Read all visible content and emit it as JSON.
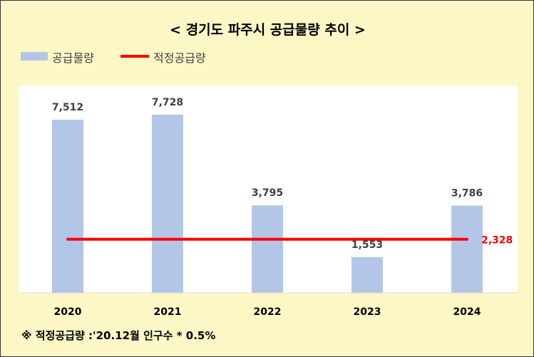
{
  "title": "< 경기도 파주시 공급물량 추이 >",
  "legend": {
    "bar_label": "공급물량",
    "line_label": "적정공급량"
  },
  "footnote": "※ 적정공급량 :'20.12월 인구수 * 0.5%",
  "colors": {
    "bar": "#b4c6e7",
    "line": "#ff0000",
    "background": "#fdf7c6"
  },
  "chart_data": {
    "type": "bar",
    "title": "< 경기도 파주시 공급물량 추이 >",
    "categories": [
      "2020",
      "2021",
      "2022",
      "2023",
      "2024"
    ],
    "series": [
      {
        "name": "공급물량",
        "type": "bar",
        "values": [
          7512,
          7728,
          3795,
          1553,
          3786
        ],
        "labels": [
          "7,512",
          "7,728",
          "3,795",
          "1,553",
          "3,786"
        ]
      },
      {
        "name": "적정공급량",
        "type": "line",
        "values": [
          2328,
          2328,
          2328,
          2328,
          2328
        ],
        "end_label": "2,328"
      }
    ],
    "ylim": [
      0,
      9000
    ],
    "grid": false,
    "legend_position": "top-left"
  }
}
